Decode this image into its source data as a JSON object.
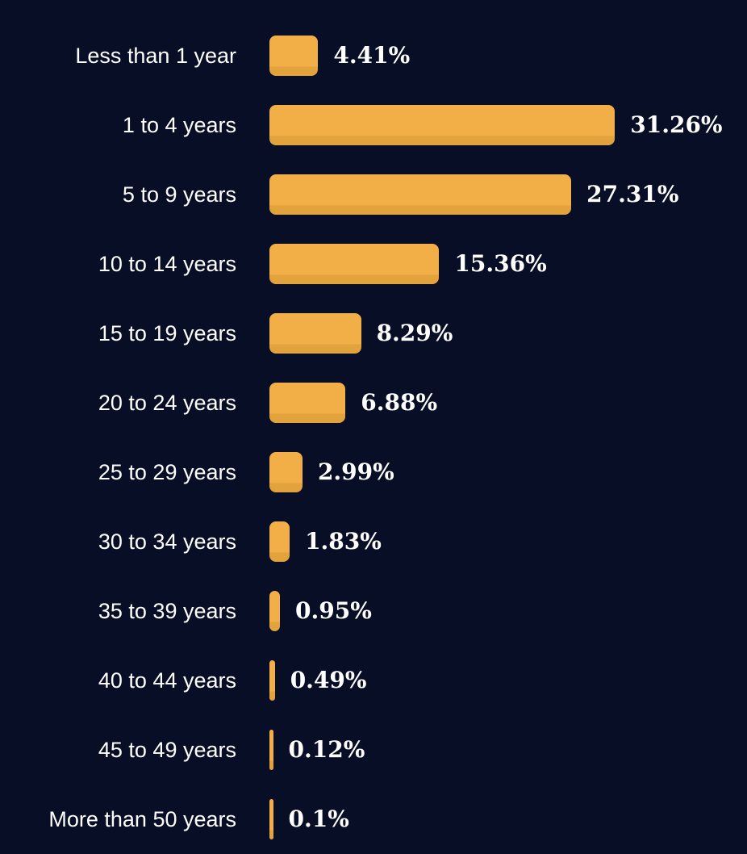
{
  "chart_data": {
    "type": "bar",
    "orientation": "horizontal",
    "title": "",
    "xlabel": "",
    "ylabel": "",
    "categories": [
      "Less than 1 year",
      "1 to 4 years",
      "5 to 9 years",
      "10 to 14 years",
      "15 to 19 years",
      "20 to 24 years",
      "25 to 29 years",
      "30 to 34 years",
      "35 to 39 years",
      "40 to 44 years",
      "45 to 49 years",
      "More than 50 years"
    ],
    "values": [
      4.41,
      31.26,
      27.31,
      15.36,
      8.29,
      6.88,
      2.99,
      1.83,
      0.95,
      0.49,
      0.12,
      0.1
    ],
    "value_labels": [
      "4.41%",
      "31.26%",
      "27.31%",
      "15.36%",
      "8.29%",
      "6.88%",
      "2.99%",
      "1.83%",
      "0.95%",
      "0.49%",
      "0.12%",
      "0.1%"
    ],
    "axes_visible": false,
    "gridlines": false,
    "legend": null,
    "colors": {
      "background": "#070e25",
      "bar_fill": "#f2ae47",
      "bar_bottom_shade": "#e2a23c",
      "label_text": "#ffffff",
      "value_text": "#ffffff"
    }
  }
}
